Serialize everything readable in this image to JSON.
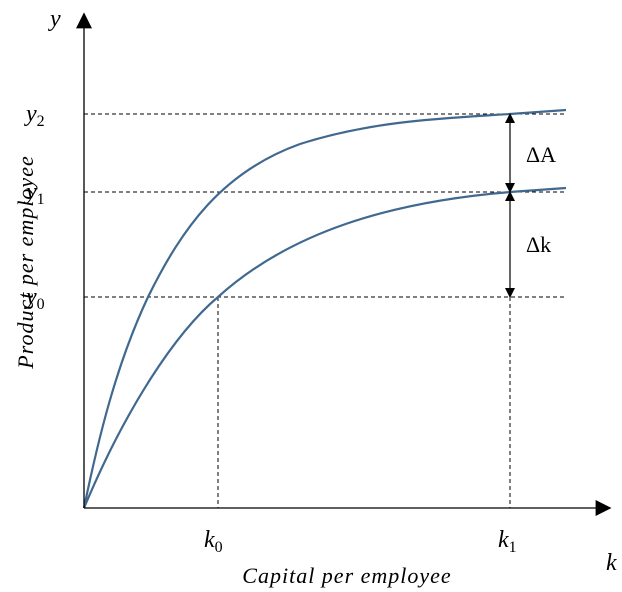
{
  "axes": {
    "y_symbol": "y",
    "x_symbol": "k",
    "y_title": "Product per employee",
    "x_title": "Capital per employee"
  },
  "y_labels": [
    {
      "base": "y",
      "sub": "0"
    },
    {
      "base": "y",
      "sub": "1"
    },
    {
      "base": "y",
      "sub": "2"
    }
  ],
  "x_labels": [
    {
      "base": "k",
      "sub": "0"
    },
    {
      "base": "k",
      "sub": "1"
    }
  ],
  "annotations": {
    "delta_A": "ΔA",
    "delta_k": "Δk"
  }
}
